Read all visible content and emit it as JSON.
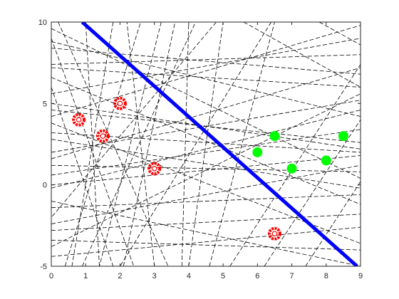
{
  "chart_data": {
    "type": "scatter",
    "title": "",
    "xlabel": "",
    "ylabel": "",
    "xlim": [
      0,
      9
    ],
    "ylim": [
      -5,
      10
    ],
    "xticks": [
      0,
      1,
      2,
      3,
      4,
      5,
      6,
      7,
      8,
      9
    ],
    "yticks": [
      -5,
      0,
      5,
      10
    ],
    "xtick_labels": [
      "0",
      "1",
      "2",
      "3",
      "4",
      "5",
      "6",
      "7",
      "8",
      "9"
    ],
    "ytick_labels": [
      "-5",
      "0",
      "5",
      "10"
    ],
    "grid": false,
    "legend": "none",
    "colors": {
      "class_red": "#ff0000",
      "class_green": "#00ff00",
      "boundary": "#0000ff",
      "dashed": "#000000",
      "axes": "#262626"
    },
    "series": [
      {
        "marker": "red-circle-ring",
        "points": [
          {
            "x": 0.8,
            "y": 4.0
          },
          {
            "x": 1.5,
            "y": 3.0
          },
          {
            "x": 2.0,
            "y": 5.0
          },
          {
            "x": 3.0,
            "y": 1.0
          },
          {
            "x": 6.5,
            "y": -3.0
          }
        ]
      },
      {
        "marker": "green-filled-circle",
        "points": [
          {
            "x": 6.0,
            "y": 2.0
          },
          {
            "x": 6.5,
            "y": 3.0
          },
          {
            "x": 7.0,
            "y": 1.0
          },
          {
            "x": 8.0,
            "y": 1.5
          },
          {
            "x": 8.5,
            "y": 3.0
          }
        ]
      }
    ],
    "boundary_line": {
      "x1": 0.9,
      "y1": 10.0,
      "x2": 8.9,
      "y2": -5.0
    },
    "dashed_lines": [
      [
        0,
        7.4,
        9,
        8.0
      ],
      [
        0,
        7.2,
        9,
        6.0
      ],
      [
        0,
        5.6,
        9,
        9.0
      ],
      [
        0,
        4.6,
        9,
        2.6
      ],
      [
        0,
        3.2,
        9,
        2.0
      ],
      [
        0,
        2.0,
        9,
        5.2
      ],
      [
        0,
        1.2,
        9,
        0.8
      ],
      [
        0,
        0.0,
        9,
        1.8
      ],
      [
        0,
        -1.4,
        9,
        -0.6
      ],
      [
        0,
        -2.4,
        9,
        1.2
      ],
      [
        0,
        -3.4,
        9,
        -4.0
      ],
      [
        0,
        -4.4,
        9,
        -2.6
      ],
      [
        0,
        8.8,
        9,
        4.2
      ],
      [
        0,
        6.6,
        9,
        -1.2
      ],
      [
        0,
        -0.2,
        9,
        4.6
      ],
      [
        0,
        3.8,
        9,
        -3.6
      ],
      [
        0,
        1.6,
        9,
        7.2
      ],
      [
        0,
        -3.8,
        9,
        5.6
      ],
      [
        0,
        9.6,
        9,
        0.4
      ],
      [
        0,
        4.2,
        9,
        9.8
      ],
      [
        0.4,
        -5,
        2.6,
        10
      ],
      [
        0.9,
        -5,
        4.2,
        10
      ],
      [
        1.4,
        -5,
        1.0,
        10
      ],
      [
        2.1,
        -5,
        3.6,
        10
      ],
      [
        3.0,
        -5,
        2.2,
        10
      ],
      [
        3.8,
        -5,
        4.0,
        10
      ],
      [
        4.6,
        -5,
        6.5,
        10
      ],
      [
        5.2,
        -5,
        9.0,
        7.4
      ],
      [
        6.2,
        -5,
        9.0,
        4.0
      ],
      [
        7.4,
        -5,
        9.0,
        0.2
      ],
      [
        0,
        9.0,
        2.4,
        -5
      ],
      [
        0,
        6.0,
        1.8,
        -5
      ],
      [
        0.2,
        10,
        3.4,
        -5
      ],
      [
        1.8,
        10,
        0.6,
        -5
      ],
      [
        3.2,
        10,
        1.4,
        -5
      ],
      [
        5.6,
        10,
        9.0,
        6.0
      ],
      [
        4.8,
        10,
        0.0,
        -2.0
      ],
      [
        6.4,
        10,
        2.0,
        -5
      ],
      [
        7.8,
        10,
        9.0,
        8.6
      ],
      [
        0,
        -1.0,
        9,
        -5.0
      ],
      [
        0,
        2.8,
        9,
        -0.2
      ],
      [
        0,
        0.6,
        9,
        3.4
      ],
      [
        0,
        -2.8,
        9,
        -1.8
      ],
      [
        0,
        5.0,
        9,
        2.2
      ],
      [
        0,
        8.4,
        9,
        6.8
      ],
      [
        4.0,
        -5,
        5.0,
        10
      ]
    ]
  }
}
